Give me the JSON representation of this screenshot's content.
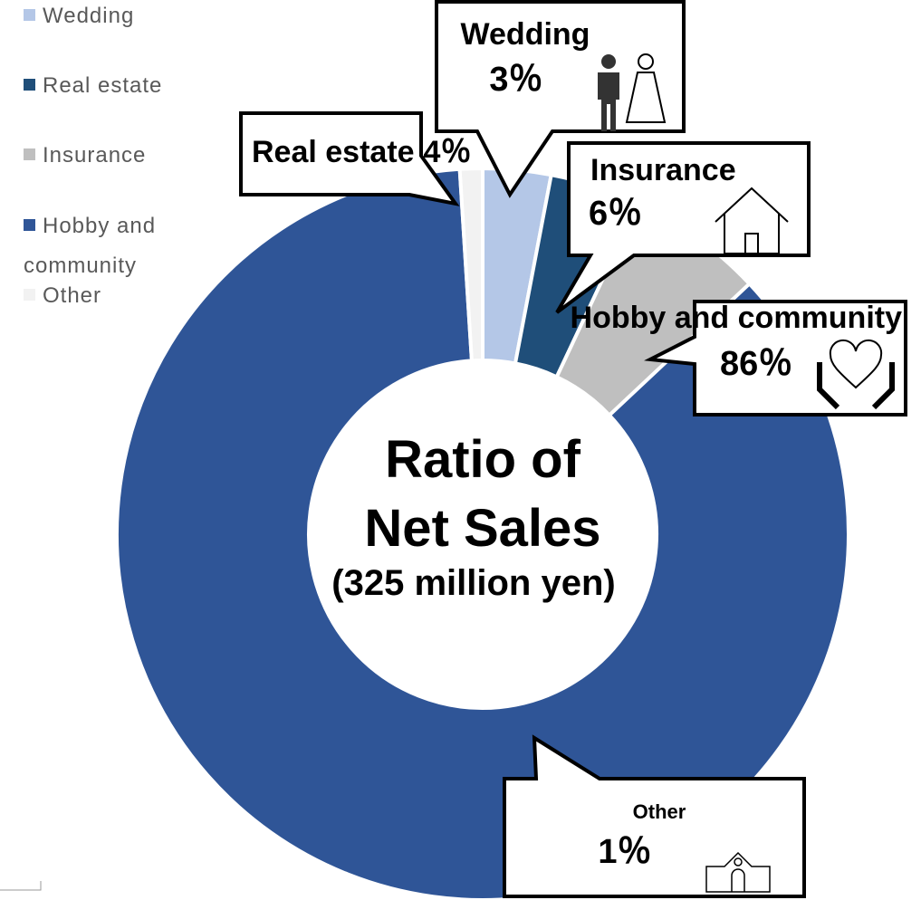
{
  "chart_data": {
    "type": "pie",
    "title": "Ratio of Net Sales",
    "subtitle": "(325 million yen)",
    "categories": [
      "Wedding",
      "Real estate",
      "Insurance",
      "Hobby and community",
      "Other"
    ],
    "values": [
      3,
      4,
      6,
      86,
      1
    ],
    "value_labels": [
      "3％",
      "4％",
      "6％",
      "86％",
      "1％"
    ],
    "colors": [
      "#b4c7e7",
      "#1f4e79",
      "#bfbfbf",
      "#2f5597",
      "#f2f2f2"
    ],
    "legend": "left"
  }
}
